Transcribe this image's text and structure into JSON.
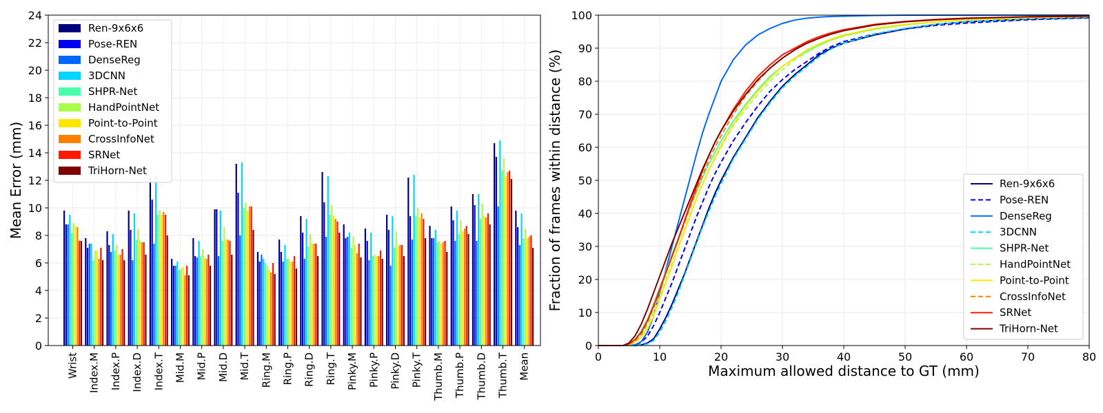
{
  "colors": {
    "Ren-9x6x6": "#00007f",
    "Pose-REN": "#0000f1",
    "DenseReg": "#0068ff",
    "3DCNN": "#00d4ff",
    "SHPR-Net": "#4cffaa",
    "HandPointNet": "#aaff4c",
    "Point-to-Point": "#ffe500",
    "CrossInfoNet": "#ff7f00",
    "SRNet": "#ff1a00",
    "TriHorn-Net": "#7f0000"
  },
  "chart_data": [
    {
      "type": "bar",
      "title": "",
      "xlabel": "",
      "ylabel": "Mean Error (mm)",
      "ylim": [
        0,
        24
      ],
      "yticks": [
        0,
        2,
        4,
        6,
        8,
        10,
        12,
        14,
        16,
        18,
        20,
        22,
        24
      ],
      "grid": true,
      "legend": "top-left",
      "categories": [
        "Wrist",
        "Index.M",
        "Index.P",
        "Index.D",
        "Index.T",
        "Mid.M",
        "Mid.P",
        "Mid.D",
        "Mid.T",
        "Ring.M",
        "Ring.P",
        "Ring.D",
        "Ring.T",
        "Pinky.M",
        "Pinky.P",
        "Pinky.D",
        "Pinky.T",
        "Thumb.M",
        "Thumb.P",
        "Thumb.D",
        "Thumb.T",
        "Mean"
      ],
      "series": [
        {
          "name": "Ren-9x6x6",
          "values": [
            9.8,
            7.8,
            8.3,
            9.8,
            12.2,
            6.3,
            7.8,
            9.9,
            13.2,
            6.8,
            7.7,
            9.4,
            12.6,
            8.8,
            8.5,
            9.5,
            12.2,
            8.7,
            10.1,
            11.0,
            14.7,
            9.8
          ]
        },
        {
          "name": "Pose-REN",
          "values": [
            8.8,
            7.1,
            7.3,
            8.4,
            10.6,
            5.8,
            6.5,
            9.9,
            11.1,
            6.1,
            6.8,
            8.2,
            10.4,
            7.8,
            7.6,
            8.4,
            9.4,
            7.8,
            9.1,
            10.2,
            13.7,
            8.6
          ]
        },
        {
          "name": "DenseReg",
          "values": [
            8.8,
            7.4,
            6.8,
            6.2,
            7.4,
            5.8,
            6.4,
            6.5,
            8.0,
            6.6,
            6.1,
            6.3,
            7.9,
            7.9,
            6.2,
            5.8,
            7.7,
            7.8,
            7.6,
            7.6,
            10.1,
            7.3
          ]
        },
        {
          "name": "3DCNN",
          "values": [
            9.5,
            7.4,
            8.1,
            9.6,
            12.4,
            6.1,
            7.6,
            9.8,
            13.3,
            6.3,
            7.3,
            9.2,
            12.3,
            8.2,
            8.2,
            9.4,
            12.4,
            8.4,
            9.8,
            11.0,
            14.9,
            9.6
          ]
        },
        {
          "name": "SHPR-Net",
          "values": [
            8.2,
            6.2,
            6.9,
            7.7,
            9.5,
            5.5,
            6.5,
            7.6,
            10.0,
            6.0,
            6.3,
            7.2,
            9.5,
            7.1,
            6.5,
            7.1,
            9.4,
            7.5,
            8.1,
            9.2,
            12.7,
            7.8
          ]
        },
        {
          "name": "HandPointNet",
          "values": [
            8.9,
            6.9,
            7.3,
            8.5,
            9.8,
            5.6,
            7.0,
            8.6,
            10.4,
            5.8,
            6.3,
            8.1,
            10.2,
            7.9,
            6.6,
            8.3,
            10.0,
            7.6,
            9.1,
            10.3,
            13.6,
            8.5
          ]
        },
        {
          "name": "Point-to-Point",
          "values": [
            8.7,
            6.9,
            6.6,
            7.6,
            9.5,
            5.7,
            6.4,
            7.7,
            9.8,
            5.5,
            6.1,
            7.4,
            9.4,
            7.3,
            6.5,
            7.2,
            9.3,
            7.4,
            8.3,
            9.4,
            12.3,
            7.8
          ]
        },
        {
          "name": "CrossInfoNet",
          "values": [
            8.6,
            6.3,
            6.6,
            7.5,
            9.7,
            5.1,
            6.3,
            7.7,
            10.1,
            5.3,
            6.1,
            7.4,
            9.2,
            6.7,
            6.5,
            7.3,
            9.6,
            7.5,
            8.5,
            9.3,
            12.6,
            7.9
          ]
        },
        {
          "name": "SRNet",
          "values": [
            7.6,
            7.1,
            7.0,
            7.5,
            9.5,
            5.8,
            6.6,
            7.6,
            10.1,
            6.0,
            6.5,
            7.4,
            9.0,
            7.4,
            6.9,
            7.3,
            9.2,
            7.6,
            8.7,
            9.6,
            12.7,
            8.0
          ]
        },
        {
          "name": "TriHorn-Net",
          "values": [
            7.6,
            6.2,
            6.2,
            6.6,
            8.0,
            5.1,
            5.8,
            6.6,
            8.4,
            5.2,
            5.6,
            6.5,
            8.2,
            6.4,
            6.3,
            6.5,
            7.8,
            6.8,
            8.1,
            8.8,
            12.1,
            7.1
          ]
        }
      ]
    },
    {
      "type": "line",
      "title": "",
      "xlabel": "Maximum allowed distance to GT (mm)",
      "ylabel": "Fraction of frames within distance (%)",
      "xlim": [
        0,
        80
      ],
      "ylim": [
        0,
        100
      ],
      "xticks": [
        0,
        10,
        20,
        30,
        40,
        50,
        60,
        70,
        80
      ],
      "yticks": [
        0,
        10,
        20,
        30,
        40,
        50,
        60,
        70,
        80,
        90,
        100
      ],
      "grid": true,
      "legend": "bottom-right",
      "x": [
        0,
        2,
        4,
        5,
        6,
        7,
        8,
        9,
        10,
        11,
        12,
        13,
        14,
        15,
        16,
        17,
        18,
        19,
        20,
        22,
        24,
        26,
        28,
        30,
        32,
        34,
        36,
        38,
        40,
        45,
        50,
        55,
        60,
        70,
        80
      ],
      "series": [
        {
          "name": "Ren-9x6x6",
          "dashed": false,
          "values": [
            0,
            0,
            0,
            0,
            0,
            0.2,
            0.8,
            2,
            5,
            8.5,
            12.5,
            17,
            21.5,
            26.5,
            31.5,
            36.5,
            41.5,
            46,
            50,
            57,
            63,
            69,
            74,
            78.5,
            82,
            85,
            88,
            90,
            91.5,
            94,
            95.8,
            97.2,
            98,
            98.8,
            99.3
          ]
        },
        {
          "name": "Pose-REN",
          "dashed": true,
          "values": [
            0,
            0,
            0,
            0,
            0.2,
            1,
            2.8,
            6,
            10,
            14.5,
            19,
            24,
            29,
            34,
            39,
            43.5,
            48,
            52,
            55.5,
            62,
            67.5,
            72.5,
            77,
            80.5,
            83.5,
            86,
            88.5,
            90.5,
            92,
            94.3,
            95.8,
            96.9,
            97.6,
            98.6,
            99.2
          ]
        },
        {
          "name": "DenseReg",
          "dashed": false,
          "values": [
            0,
            0,
            0,
            0,
            0.2,
            1.2,
            4,
            9,
            16,
            23,
            30,
            37,
            44,
            51,
            58,
            64.5,
            70,
            75,
            80,
            86.5,
            91,
            94,
            96,
            97.5,
            98.5,
            99.1,
            99.4,
            99.6,
            99.7,
            99.9,
            100,
            100,
            100,
            100,
            100
          ]
        },
        {
          "name": "3DCNN",
          "dashed": true,
          "values": [
            0,
            0,
            0,
            0,
            0,
            0.1,
            0.5,
            1.5,
            4,
            7.5,
            11.5,
            16,
            21,
            26,
            31,
            36,
            40.5,
            45,
            49,
            56.5,
            62.5,
            68.5,
            73.5,
            78,
            81.5,
            84.5,
            87.5,
            89.8,
            91.5,
            94.3,
            96,
            97.2,
            98,
            98.9,
            99.4
          ]
        },
        {
          "name": "SHPR-Net",
          "dashed": false,
          "values": [
            0,
            0,
            0,
            0.6,
            2,
            4.5,
            8,
            12.5,
            17.5,
            22.5,
            27.5,
            32.5,
            37.5,
            42,
            46.5,
            51,
            55,
            58.5,
            62,
            68,
            73,
            77.5,
            81.5,
            84.5,
            87,
            89,
            91,
            92.5,
            93.8,
            95.8,
            97.1,
            98,
            98.6,
            99.3,
            99.6
          ]
        },
        {
          "name": "HandPointNet",
          "dashed": true,
          "values": [
            0,
            0,
            0,
            0.3,
            1.2,
            3,
            6,
            10,
            15,
            20,
            25,
            30,
            35,
            40,
            44.5,
            49,
            53,
            56.5,
            60,
            66.5,
            71.5,
            76,
            80,
            83.5,
            86.5,
            88.8,
            90.8,
            92.4,
            93.6,
            95.7,
            97,
            97.9,
            98.5,
            99.2,
            99.6
          ]
        },
        {
          "name": "Point-to-Point",
          "dashed": false,
          "values": [
            0,
            0,
            0,
            0.2,
            1,
            2.5,
            5,
            9,
            14,
            19,
            24,
            29.5,
            34.5,
            39.5,
            44.5,
            49,
            53,
            57,
            60.5,
            67,
            72.5,
            77,
            81,
            84.5,
            87,
            89.5,
            91.3,
            92.8,
            94,
            96,
            97.2,
            98,
            98.6,
            99.2,
            99.6
          ]
        },
        {
          "name": "CrossInfoNet",
          "dashed": true,
          "values": [
            0,
            0,
            0,
            0.4,
            1.5,
            3.5,
            7,
            11.5,
            16.5,
            22,
            27,
            32,
            37,
            42,
            47,
            51.5,
            56,
            60,
            63.5,
            70,
            75.5,
            80,
            84,
            87,
            89.5,
            91.5,
            93,
            94.3,
            95.3,
            97,
            98,
            98.7,
            99.1,
            99.5,
            99.8
          ]
        },
        {
          "name": "SRNet",
          "dashed": false,
          "values": [
            0,
            0,
            0,
            0.5,
            1.8,
            4,
            7.5,
            12,
            17,
            22,
            27,
            32,
            37.5,
            43,
            48,
            53,
            57.5,
            61.5,
            65,
            71.5,
            77,
            81.5,
            85,
            88,
            90,
            92,
            93.5,
            94.7,
            95.6,
            97.2,
            98.1,
            98.7,
            99.1,
            99.5,
            99.7
          ]
        },
        {
          "name": "TriHorn-Net",
          "dashed": false,
          "values": [
            0,
            0,
            0,
            0.8,
            3,
            6.5,
            11,
            16,
            21,
            26,
            31,
            35.5,
            40,
            44.5,
            49,
            53.5,
            57.5,
            61.5,
            65,
            71,
            76,
            80.5,
            84,
            87,
            89.5,
            91.5,
            93,
            94.3,
            95.3,
            97,
            98,
            98.6,
            99,
            99.5,
            99.7
          ]
        }
      ]
    }
  ]
}
